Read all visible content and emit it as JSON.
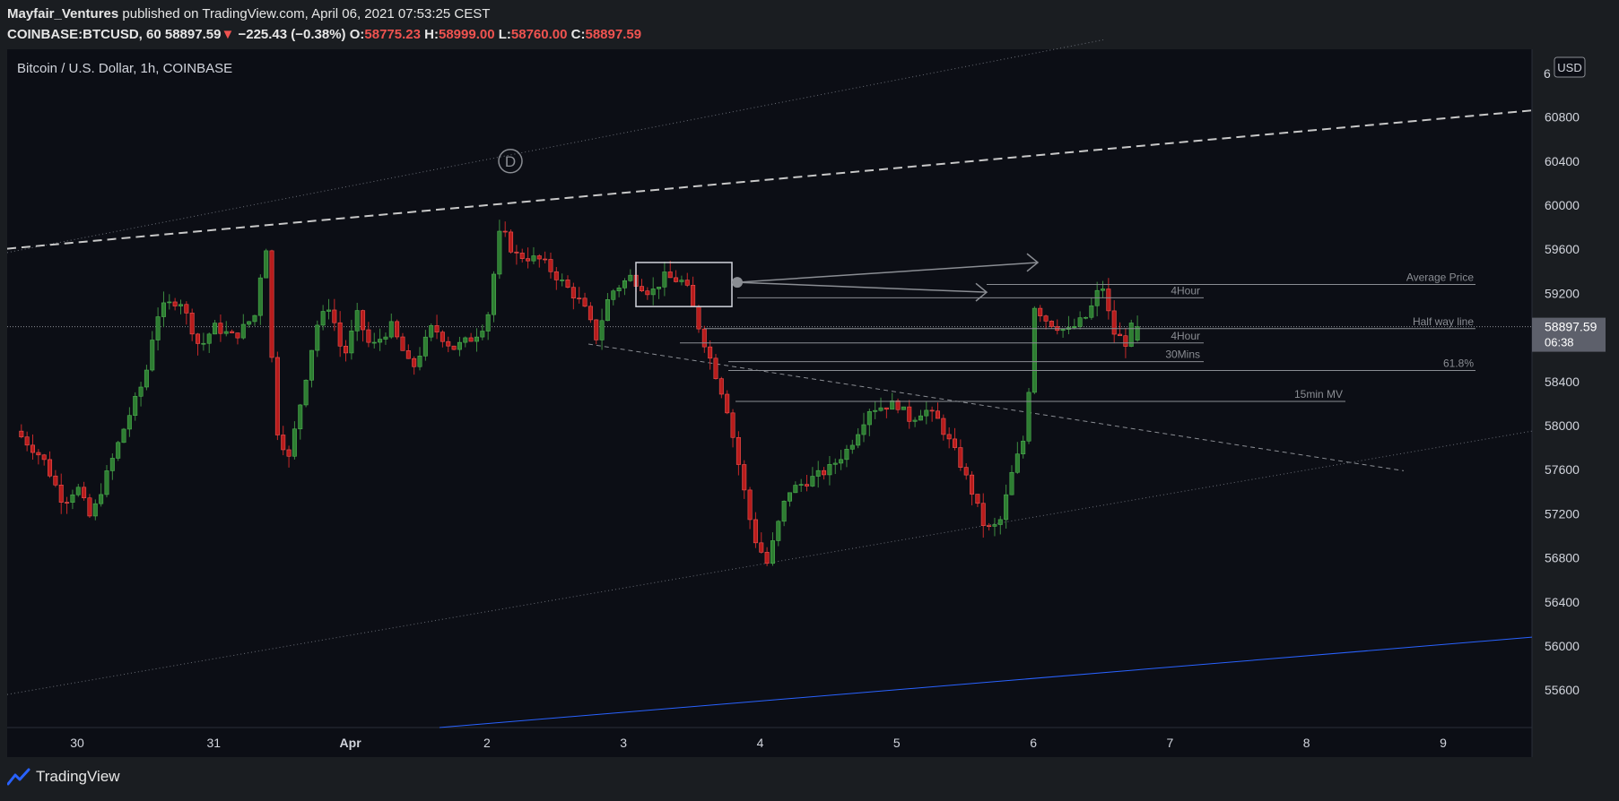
{
  "header": {
    "author": "Mayfair_Ventures",
    "published_text": "published on TradingView.com, April 06, 2021 07:53:25 CEST",
    "symbol": "COINBASE:BTCUSD, 60",
    "last": "58897.59",
    "arrow": "▼",
    "change": "−225.43 (−0.38%)",
    "o_label": "O:",
    "o_value": "58775.23",
    "h_label": "H:",
    "h_value": "58999.00",
    "l_label": "L:",
    "l_value": "58760.00",
    "c_label": "C:",
    "c_value": "58897.59"
  },
  "footer": {
    "brand": "TradingView"
  },
  "colors": {
    "background": "#0c0e15",
    "up": "#26a69a",
    "up_body": "#2e7d32",
    "down": "#ef5350",
    "down_body": "#b71c1c",
    "trendline": "#8a8d93",
    "blue_line": "#2962ff"
  },
  "chart_data": {
    "type": "candlestick",
    "title": "Bitcoin / U.S. Dollar, 1h, COINBASE",
    "currency_badge": "USD",
    "ylim": [
      55300,
      61500
    ],
    "y_ticks": [
      55600,
      56000,
      56400,
      56800,
      57200,
      57600,
      58000,
      58400,
      58800,
      59200,
      59600,
      60000,
      60400,
      60800
    ],
    "y_tick_labels": [
      "55600",
      "56000",
      "56400",
      "56800",
      "57200",
      "57600",
      "58000",
      "58400",
      "",
      "59200",
      "59600",
      "60000",
      "60400",
      "60800"
    ],
    "y_top_partial_label": "6",
    "x_labels": [
      "30",
      "31",
      "Apr",
      "2",
      "3",
      "4",
      "5",
      "6",
      "7",
      "8",
      "9"
    ],
    "price_label": "58897.59",
    "countdown": "06:38",
    "current_price": 58897.59,
    "last_candle_open": 58775.23,
    "last_candle_high": 58999.0,
    "last_candle_low": 58760.0,
    "last_candle_close": 58897.59,
    "grid": false,
    "annotations": [
      {
        "label": "Average Price",
        "price": 59280
      },
      {
        "label": "4Hour",
        "price": 59160
      },
      {
        "label": "Half way line",
        "price": 58880
      },
      {
        "label": "4Hour",
        "price": 58750
      },
      {
        "label": "30Mins",
        "price": 58580
      },
      {
        "label": "61.8%",
        "price": 58500
      },
      {
        "label": "15min MV",
        "price": 58220
      }
    ],
    "wave_label": "D"
  }
}
